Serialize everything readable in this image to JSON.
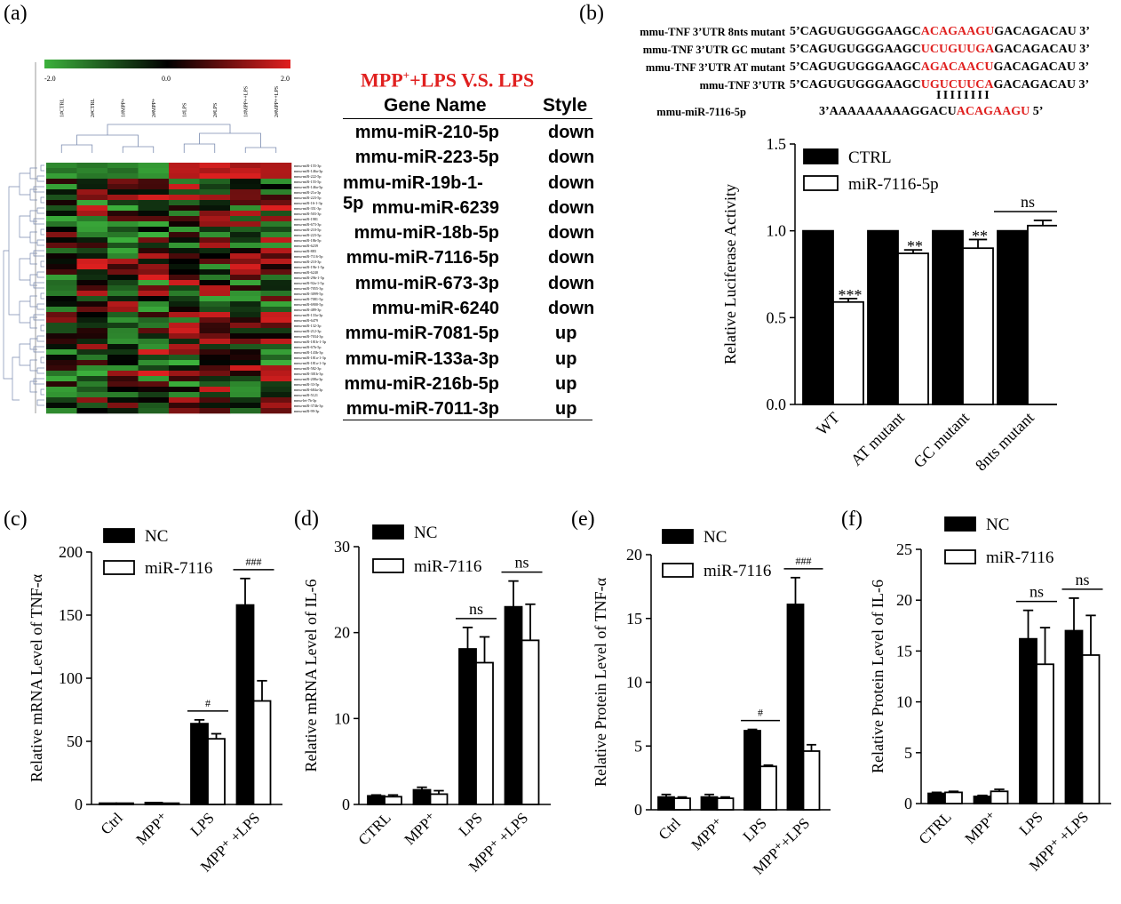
{
  "panels": {
    "a": "(a)",
    "b": "(b)",
    "c": "(c)",
    "d": "(d)",
    "e": "(e)",
    "f": "(f)"
  },
  "heatmap": {
    "scale_min": "-2.0",
    "scale_mid": "0.0",
    "scale_max": "2.0",
    "colors": {
      "low": "#3cb13c",
      "mid": "#000000",
      "high": "#e02020"
    },
    "samples": [
      "1#CTRL",
      "2#CTRL",
      "1#MPP+",
      "2#MPP+",
      "1#LPS",
      "2#LPS",
      "1#MPP++LPS",
      "2#MPP++LPS"
    ],
    "rows": [
      "mmu-miR-155-3p",
      "mmu-miR-146a-3p",
      "mmu-miR-222-5p",
      "mmu-miR-155-5p",
      "mmu-miR-146a-5p",
      "mmu-miR-21a-3p",
      "mmu-miR-223-5p",
      "mmu-miR-16-1-3p",
      "mmu-miR-351-3p",
      "mmu-miR-503-3p",
      "mmu-miR-1981",
      "mmu-miR-673-3p",
      "mmu-miR-210-5p",
      "mmu-miR-223-5p",
      "mmu-miR-18b-5p",
      "mmu-miR-6239",
      "mmu-miR-883",
      "mmu-miR-7116-5p",
      "mmu-miR-210-3p",
      "mmu-miR-19b-1-5p",
      "mmu-miR-6240",
      "mmu-miR-29b-1-5p",
      "mmu-miR-92a-1-5p",
      "mmu-miR-7055-3p",
      "mmu-miR-3099-5p",
      "mmu-miR-7081-5p",
      "mmu-miR-6900-5p",
      "mmu-miR-489-3p",
      "mmu-miR-133a-3p",
      "mmu-miR-6479",
      "mmu-miR-132-3p",
      "mmu-miR-212-3p",
      "mmu-miR-7034-3p",
      "mmu-miR-181b-1-3p",
      "mmu-miR-67b-5p",
      "mmu-miR-143b-3p",
      "mmu-miR-181a-1-3p",
      "mmu-miR-181a-1-3p",
      "mmu-miR-582-3p",
      "mmu-miR-301b-3p",
      "mmu-miR-208a-3p",
      "mmu-miR-33-5p",
      "mmu-miR-684a-3p",
      "mmu-miR-5121",
      "mmu-let-7b-3p",
      "mmu-miR-374b-3p",
      "mmu-miR-99-3p"
    ]
  },
  "mir_table": {
    "title_pre": "MPP",
    "title_sup": "+",
    "title_post": "+LPS V.S. LPS",
    "col_gene": "Gene Name",
    "col_style": "Style",
    "rows": [
      {
        "gene": "mmu-miR-210-5p",
        "style": "down"
      },
      {
        "gene": "mmu-miR-223-5p",
        "style": "down"
      },
      {
        "gene": "mmu-miR-19b-1-5p",
        "style": "down"
      },
      {
        "gene": "mmu-miR-6239",
        "style": "down"
      },
      {
        "gene": "mmu-miR-18b-5p",
        "style": "down"
      },
      {
        "gene": "mmu-miR-7116-5p",
        "style": "down"
      },
      {
        "gene": "mmu-miR-673-3p",
        "style": "down"
      },
      {
        "gene": "mmu-miR-6240",
        "style": "down"
      },
      {
        "gene": "mmu-miR-7081-5p",
        "style": "up"
      },
      {
        "gene": "mmu-miR-133a-3p",
        "style": "up"
      },
      {
        "gene": "mmu-miR-216b-5p",
        "style": "up"
      },
      {
        "gene": "mmu-miR-7011-3p",
        "style": "up"
      }
    ]
  },
  "sequences": {
    "rows": [
      {
        "label": "mmu-TNF 3’UTR 8nts mutant",
        "pre": "5’CAGUGUGGGAAGC",
        "mid": "ACAGAAGU",
        "post": "GACAGACAU 3’"
      },
      {
        "label": "mmu-TNF 3’UTR GC mutant",
        "pre": "5’CAGUGUGGGAAGC",
        "mid": "UCUGUUGA",
        "post": "GACAGACAU 3’"
      },
      {
        "label": "mmu-TNF 3’UTR AT mutant",
        "pre": "5’CAGUGUGGGAAGC",
        "mid": "AGACAACU",
        "post": "GACAGACAU 3’"
      },
      {
        "label": "mmu-TNF 3’UTR",
        "pre": "5’CAGUGUGGGAAGC",
        "mid": "UGUCUUCA",
        "post": "GACAGACAU 3’"
      }
    ],
    "pairing": "I I I I I I I I",
    "mirna": {
      "label": "mmu-miR-7116-5p",
      "pre": "3’AAAAAAAAAGGACU",
      "mid": "ACAGAAGU",
      "post": " 5’"
    },
    "highlight_color": "#e0201f"
  },
  "chart_data": [
    {
      "panel": "b",
      "type": "bar",
      "categories": [
        "WT",
        "AT mutant",
        "GC mutant",
        "8nts mutant"
      ],
      "series": [
        {
          "name": "CTRL",
          "values": [
            1.0,
            1.0,
            1.0,
            1.0
          ],
          "errors": [
            0,
            0,
            0,
            0
          ],
          "fill": "#000000"
        },
        {
          "name": "miR-7116-5p",
          "values": [
            0.59,
            0.87,
            0.9,
            1.03
          ],
          "errors": [
            0.02,
            0.02,
            0.05,
            0.03
          ],
          "fill": "#ffffff"
        }
      ],
      "ylabel": "Relative Luciferase Activity",
      "ylim": [
        0,
        1.5
      ],
      "yticks": [
        "0.0",
        "0.5",
        "1.0",
        "1.5"
      ],
      "annotations": [
        {
          "category": 0,
          "text": "***"
        },
        {
          "category": 1,
          "text": "**"
        },
        {
          "category": 2,
          "text": "**"
        },
        {
          "category": 3,
          "text": "ns",
          "bracket": true
        }
      ],
      "legend": "top-left"
    },
    {
      "panel": "c",
      "type": "bar",
      "categories": [
        "Ctrl",
        "MPP⁺",
        "LPS",
        "MPP⁺ +LPS"
      ],
      "series": [
        {
          "name": "NC",
          "values": [
            1,
            1.5,
            64,
            158
          ],
          "errors": [
            0,
            0,
            3,
            21
          ],
          "fill": "#000000"
        },
        {
          "name": "miR-7116",
          "values": [
            1,
            1,
            52,
            82
          ],
          "errors": [
            0,
            0,
            4,
            16
          ],
          "fill": "#ffffff"
        }
      ],
      "ylabel": "Relative mRNA Level of TNF-α",
      "ylim": [
        0,
        200
      ],
      "yticks": [
        "0",
        "50",
        "100",
        "150",
        "200"
      ],
      "annotations": [
        {
          "category": 2,
          "text": "#",
          "bracket": true
        },
        {
          "category": 3,
          "text": "###",
          "bracket": true
        }
      ],
      "legend": "top-left"
    },
    {
      "panel": "d",
      "type": "bar",
      "categories": [
        "CTRL",
        "MPP⁺",
        "LPS",
        "MPP⁺ +LPS"
      ],
      "series": [
        {
          "name": "NC",
          "values": [
            1.0,
            1.7,
            18.1,
            23.0
          ],
          "errors": [
            0.1,
            0.3,
            2.5,
            3.0
          ],
          "fill": "#000000"
        },
        {
          "name": "miR-7116",
          "values": [
            0.9,
            1.2,
            16.5,
            19.1
          ],
          "errors": [
            0.2,
            0.4,
            3.0,
            4.2
          ],
          "fill": "#ffffff"
        }
      ],
      "ylabel": "Relative mRNA Level of IL-6",
      "ylim": [
        0,
        30
      ],
      "yticks": [
        "0",
        "10",
        "20",
        "30"
      ],
      "annotations": [
        {
          "category": 2,
          "text": "ns",
          "bracket": true
        },
        {
          "category": 3,
          "text": "ns",
          "bracket": true
        }
      ],
      "legend": "top-left"
    },
    {
      "panel": "e",
      "type": "bar",
      "categories": [
        "Ctrl",
        "MPP⁺",
        "LPS",
        "MPP⁺+LPS"
      ],
      "series": [
        {
          "name": "NC",
          "values": [
            1.0,
            1.0,
            6.2,
            16.1
          ],
          "errors": [
            0.2,
            0.2,
            0.1,
            2.1
          ],
          "fill": "#000000"
        },
        {
          "name": "miR-7116",
          "values": [
            0.9,
            0.9,
            3.4,
            4.6
          ],
          "errors": [
            0.1,
            0.1,
            0.1,
            0.5
          ],
          "fill": "#ffffff"
        }
      ],
      "ylabel": "Relative Protein Level of TNF-α",
      "ylim": [
        0,
        20
      ],
      "yticks": [
        "0",
        "5",
        "10",
        "15",
        "20"
      ],
      "annotations": [
        {
          "category": 2,
          "text": "#",
          "bracket": true
        },
        {
          "category": 3,
          "text": "###",
          "bracket": true
        }
      ],
      "legend": "top-left"
    },
    {
      "panel": "f",
      "type": "bar",
      "categories": [
        "CTRL",
        "MPP⁺",
        "LPS",
        "MPP⁺ +LPS"
      ],
      "series": [
        {
          "name": "NC",
          "values": [
            1.0,
            0.7,
            16.2,
            17.0
          ],
          "errors": [
            0.1,
            0.1,
            2.8,
            3.2
          ],
          "fill": "#000000"
        },
        {
          "name": "miR-7116",
          "values": [
            1.1,
            1.2,
            13.7,
            14.6
          ],
          "errors": [
            0.1,
            0.2,
            3.6,
            3.9
          ],
          "fill": "#ffffff"
        }
      ],
      "ylabel": "Relative Protein Level of IL-6",
      "ylim": [
        0,
        25
      ],
      "yticks": [
        "0",
        "5",
        "10",
        "15",
        "20",
        "25"
      ],
      "annotations": [
        {
          "category": 2,
          "text": "ns",
          "bracket": true
        },
        {
          "category": 3,
          "text": "ns",
          "bracket": true
        }
      ],
      "legend": "top-left"
    }
  ]
}
